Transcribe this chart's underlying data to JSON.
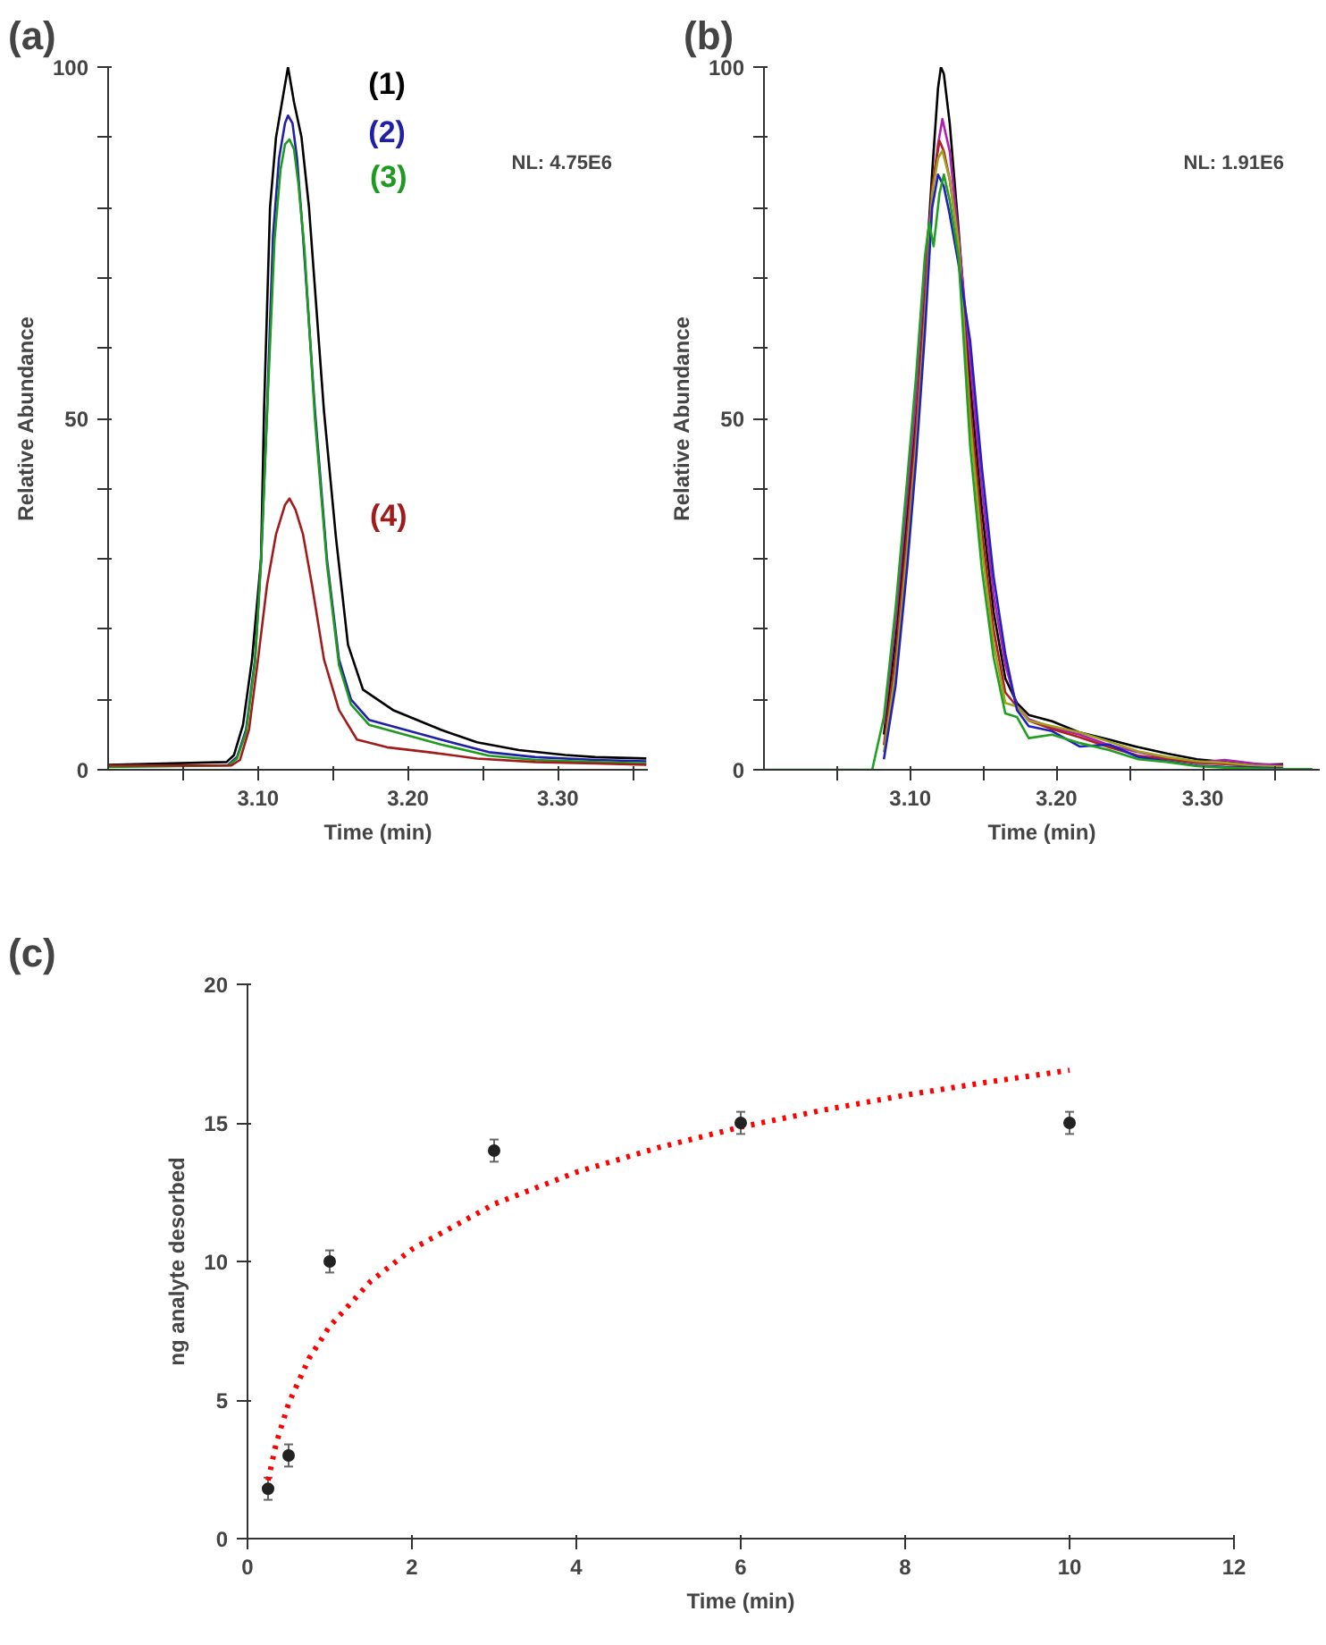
{
  "chart_data": [
    {
      "type": "line",
      "title": "(a)",
      "xlabel": "Time (min)",
      "ylabel": "Relative Abundance",
      "annotations": [
        "NL: 4.75E6"
      ],
      "grid": false,
      "xlim": [
        3.0,
        3.36
      ],
      "xticks": [
        {
          "value": 3.05,
          "label": null
        },
        {
          "value": 3.1,
          "label": "3.10"
        },
        {
          "value": 3.15,
          "label": null
        },
        {
          "value": 3.2,
          "label": "3.20"
        },
        {
          "value": 3.25,
          "label": null
        },
        {
          "value": 3.3,
          "label": "3.30"
        },
        {
          "value": 3.35,
          "label": null
        }
      ],
      "ylim": [
        0,
        100
      ],
      "yticks": [
        0,
        {
          "value": 10,
          "label": null
        },
        {
          "value": 20,
          "label": null
        },
        {
          "value": 30,
          "label": null
        },
        {
          "value": 40,
          "label": null
        },
        50,
        {
          "value": 60,
          "label": null
        },
        {
          "value": 70,
          "label": null
        },
        {
          "value": 80,
          "label": null
        },
        {
          "value": 90,
          "label": null
        },
        100
      ],
      "series": [
        {
          "name": "(1)",
          "color": "#000000",
          "x": [
            3.0,
            3.079,
            3.084,
            3.09,
            3.096,
            3.102,
            3.104,
            3.108,
            3.112,
            3.116,
            3.12,
            3.124,
            3.129,
            3.134,
            3.144,
            3.152,
            3.16,
            3.17,
            3.19,
            3.206,
            3.222,
            3.246,
            3.274,
            3.305,
            3.325,
            3.359
          ],
          "values": [
            0.7,
            1.1,
            2.1,
            6.4,
            15.7,
            29.9,
            51,
            80,
            90,
            95,
            100,
            95,
            90,
            80,
            51,
            33,
            17.8,
            11.4,
            8.5,
            7.1,
            5.7,
            3.9,
            2.8,
            2.1,
            1.8,
            1.6
          ]
        },
        {
          "name": "(2)",
          "color": "#1f1fa8",
          "x": [
            3.08,
            3.086,
            3.092,
            3.098,
            3.102,
            3.106,
            3.11,
            3.114,
            3.118,
            3.12,
            3.123,
            3.126,
            3.13,
            3.138,
            3.146,
            3.154,
            3.162,
            3.174,
            3.198,
            3.222,
            3.254,
            3.285,
            3.325,
            3.359
          ],
          "values": [
            0.7,
            1.8,
            5.7,
            15.7,
            29.9,
            51,
            76,
            87,
            92,
            93.1,
            92,
            87,
            76,
            51,
            29.9,
            15.7,
            10,
            7.1,
            5.7,
            4.3,
            2.5,
            1.8,
            1.4,
            1.2
          ]
        },
        {
          "name": "(3)",
          "color": "#1e9a1e",
          "x": [
            3.0,
            3.08,
            3.086,
            3.092,
            3.098,
            3.102,
            3.106,
            3.111,
            3.115,
            3.118,
            3.121,
            3.124,
            3.127,
            3.131,
            3.138,
            3.146,
            3.154,
            3.162,
            3.174,
            3.198,
            3.222,
            3.254,
            3.285,
            3.325,
            3.359
          ],
          "values": [
            0.4,
            0.6,
            1.6,
            5.3,
            15.3,
            29.5,
            50.5,
            75.4,
            85.4,
            89,
            89.7,
            88.3,
            83.3,
            74,
            49.8,
            29.2,
            14.9,
            9.3,
            6.4,
            5.0,
            3.6,
            2.0,
            1.4,
            1.1,
            0.9
          ]
        },
        {
          "name": "(4)",
          "color": "#a01c1c",
          "x": [
            3.0,
            3.082,
            3.088,
            3.094,
            3.1,
            3.106,
            3.112,
            3.118,
            3.121,
            3.125,
            3.13,
            3.136,
            3.144,
            3.154,
            3.166,
            3.186,
            3.214,
            3.246,
            3.285,
            3.325,
            3.359
          ],
          "values": [
            0.6,
            0.6,
            1.4,
            5.7,
            15.7,
            26.3,
            33.5,
            37.7,
            38.6,
            37,
            33.5,
            26.3,
            15.7,
            8.5,
            4.3,
            3.2,
            2.5,
            1.6,
            1.1,
            0.9,
            0.7
          ]
        }
      ]
    },
    {
      "type": "line",
      "title": "(b)",
      "xlabel": "Time (min)",
      "ylabel": "Relative Abundance",
      "annotations": [
        "NL: 1.91E6"
      ],
      "grid": false,
      "xlim": [
        3.0,
        3.38
      ],
      "xticks": [
        {
          "value": 3.05,
          "label": null
        },
        {
          "value": 3.1,
          "label": "3.10"
        },
        {
          "value": 3.15,
          "label": null
        },
        {
          "value": 3.2,
          "label": "3.20"
        },
        {
          "value": 3.25,
          "label": null
        },
        {
          "value": 3.3,
          "label": "3.30"
        },
        {
          "value": 3.35,
          "label": null
        }
      ],
      "ylim": [
        0,
        100
      ],
      "yticks": [
        0,
        {
          "value": 10,
          "label": null
        },
        {
          "value": 20,
          "label": null
        },
        {
          "value": 30,
          "label": null
        },
        {
          "value": 40,
          "label": null
        },
        50,
        {
          "value": 60,
          "label": null
        },
        {
          "value": 70,
          "label": null
        },
        {
          "value": 80,
          "label": null
        },
        {
          "value": 90,
          "label": null
        },
        100
      ],
      "series": [
        {
          "color": "#000000",
          "x": [
            3.082,
            3.09,
            3.098,
            3.104,
            3.11,
            3.115,
            3.119,
            3.121,
            3.123,
            3.127,
            3.133,
            3.141,
            3.149,
            3.157,
            3.165,
            3.173,
            3.181,
            3.197,
            3.216,
            3.236,
            3.256,
            3.276,
            3.296,
            3.315,
            3.335,
            3.355
          ],
          "values": [
            5,
            18.5,
            36.4,
            50.6,
            68.5,
            85,
            97,
            100,
            99,
            92,
            77,
            55,
            37,
            22.5,
            13,
            9.5,
            7.8,
            6.9,
            5.3,
            4.3,
            3.2,
            2.3,
            1.5,
            1.1,
            0.7,
            0.8
          ]
        },
        {
          "color": "#b020b0",
          "x": [
            3.082,
            3.09,
            3.098,
            3.104,
            3.11,
            3.115,
            3.119,
            3.122,
            3.127,
            3.133,
            3.141,
            3.149,
            3.157,
            3.165,
            3.173,
            3.181,
            3.197,
            3.216,
            3.236,
            3.256,
            3.276,
            3.296,
            3.315,
            3.335,
            3.355
          ],
          "values": [
            6.5,
            21,
            39,
            53,
            71,
            82,
            89,
            92.6,
            88,
            76,
            58,
            40,
            25,
            15,
            9,
            7.2,
            6.0,
            5.0,
            3.5,
            2.5,
            1.6,
            1.0,
            1.4,
            0.9,
            0.6
          ]
        },
        {
          "color": "#b02020",
          "x": [
            3.082,
            3.09,
            3.098,
            3.104,
            3.11,
            3.115,
            3.12,
            3.123,
            3.127,
            3.133,
            3.141,
            3.149,
            3.157,
            3.165,
            3.173,
            3.181,
            3.197,
            3.216,
            3.236,
            3.256,
            3.276,
            3.296,
            3.315,
            3.335,
            3.355
          ],
          "values": [
            3.5,
            16,
            34,
            48.5,
            66,
            83,
            89.5,
            88,
            84,
            75,
            52,
            34,
            20,
            11,
            9,
            7,
            5.8,
            4.6,
            3.2,
            2.0,
            1.5,
            1.0,
            0.8,
            0.5,
            0.3
          ]
        },
        {
          "color": "#a0a020",
          "x": [
            3.082,
            3.09,
            3.098,
            3.104,
            3.11,
            3.115,
            3.119,
            3.122,
            3.127,
            3.133,
            3.141,
            3.149,
            3.157,
            3.165,
            3.173,
            3.181,
            3.197,
            3.216,
            3.236,
            3.256,
            3.276,
            3.296,
            3.315,
            3.335,
            3.355
          ],
          "values": [
            2.5,
            14,
            31.5,
            46,
            64,
            82,
            87,
            88.1,
            84,
            75,
            49.5,
            31.5,
            18,
            9.5,
            9,
            7,
            6.2,
            5.3,
            4.0,
            2.6,
            1.8,
            1.2,
            1.0,
            0.6,
            0.4
          ]
        },
        {
          "color": "#2020c0",
          "x": [
            3.082,
            3.09,
            3.098,
            3.104,
            3.11,
            3.115,
            3.119,
            3.123,
            3.127,
            3.133,
            3.141,
            3.149,
            3.157,
            3.165,
            3.173,
            3.181,
            3.197,
            3.216,
            3.236,
            3.256,
            3.276,
            3.296,
            3.315,
            3.335,
            3.355
          ],
          "values": [
            1.5,
            12,
            29,
            44,
            62,
            80,
            84.7,
            83,
            79,
            72,
            61,
            43,
            27.5,
            16.5,
            8.5,
            6.2,
            5.5,
            3.3,
            3.6,
            1.8,
            1.2,
            0.6,
            0.4,
            0.3,
            0.2
          ]
        },
        {
          "color": "#20a020",
          "x": [
            3.0,
            3.074,
            3.082,
            3.09,
            3.098,
            3.104,
            3.11,
            3.113,
            3.116,
            3.12,
            3.123,
            3.127,
            3.133,
            3.141,
            3.149,
            3.157,
            3.165,
            3.173,
            3.181,
            3.197,
            3.216,
            3.236,
            3.256,
            3.276,
            3.296,
            3.315,
            3.335,
            3.355,
            3.375
          ],
          "values": [
            0,
            0,
            7.5,
            23,
            41.5,
            56,
            73,
            77.9,
            74.5,
            82,
            84.7,
            81,
            73,
            46,
            28.5,
            16,
            8,
            7.5,
            4.5,
            5.0,
            3.8,
            2.8,
            1.5,
            1.1,
            0.5,
            0.3,
            0.2,
            0.1,
            0.1
          ]
        }
      ]
    },
    {
      "type": "scatter",
      "title": "(c)",
      "xlabel": "Time (min)",
      "ylabel": "ng analyte desorbed",
      "grid": false,
      "xlim": [
        0,
        12
      ],
      "xticks": [
        0,
        2,
        4,
        6,
        8,
        10,
        12
      ],
      "ylim": [
        0,
        20
      ],
      "yticks": [
        0,
        5,
        10,
        15,
        20
      ],
      "series": [
        {
          "type": "line",
          "line_style": "dotted",
          "color": "#ff0000",
          "x": [
            0.25,
            0.35,
            0.5,
            0.75,
            1,
            1.5,
            2,
            3,
            4,
            5,
            6,
            7,
            8,
            9,
            10
          ],
          "values": [
            2.1,
            3.45,
            4.88,
            6.51,
            7.66,
            9.29,
            10.44,
            12.07,
            13.22,
            14.11,
            14.85,
            15.46,
            16.0,
            16.47,
            16.9
          ]
        },
        {
          "color": "#222222",
          "marker": "circle",
          "x": [
            0.25,
            0.5,
            1,
            3,
            6,
            10
          ],
          "values": [
            1.8,
            3,
            10,
            14,
            15,
            15
          ],
          "errors": [
            0.4,
            0.4,
            0.4,
            0.4,
            0.4,
            0.4
          ]
        }
      ]
    }
  ]
}
